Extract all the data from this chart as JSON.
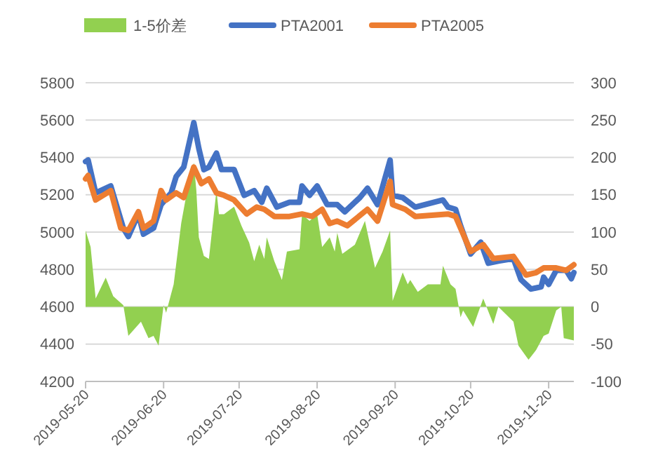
{
  "chart_data": {
    "type": "line",
    "xlim": [
      "2019-05-20",
      "2019-11-30"
    ],
    "xticks": [
      {
        "value": "2019-05-20",
        "label": "2019-05-20"
      },
      {
        "value": "2019-06-20",
        "label": "2019-06-20"
      },
      {
        "value": "2019-07-20",
        "label": "2019-07-20"
      },
      {
        "value": "2019-08-20",
        "label": "2019-08-20"
      },
      {
        "value": "2019-09-20",
        "label": "2019-09-20"
      },
      {
        "value": "2019-10-20",
        "label": "2019-10-20"
      },
      {
        "value": "2019-11-20",
        "label": "2019-11-20"
      }
    ],
    "ylim": [
      4200,
      5800
    ],
    "yticks": [
      4200,
      4400,
      4600,
      4800,
      5000,
      5200,
      5400,
      5600,
      5800
    ],
    "y2lim": [
      -100,
      300
    ],
    "y2ticks": [
      -100,
      -50,
      0,
      50,
      100,
      150,
      200,
      250,
      300
    ],
    "grid": "y",
    "legend": "top",
    "series": [
      {
        "name": "1-5价差",
        "type": "area",
        "axis": "y2",
        "color": "#92d050",
        "x": [
          "2019-05-20",
          "2019-05-22",
          "2019-05-24",
          "2019-05-28",
          "2019-05-31",
          "2019-06-04",
          "2019-06-06",
          "2019-06-11",
          "2019-06-14",
          "2019-06-16",
          "2019-06-18",
          "2019-06-20",
          "2019-06-21",
          "2019-06-24",
          "2019-06-27",
          "2019-06-29",
          "2019-07-02",
          "2019-07-03",
          "2019-07-04",
          "2019-07-06",
          "2019-07-08",
          "2019-07-11",
          "2019-07-12",
          "2019-07-14",
          "2019-07-18",
          "2019-07-21",
          "2019-07-24",
          "2019-07-26",
          "2019-07-28",
          "2019-07-30",
          "2019-07-31",
          "2019-08-03",
          "2019-08-06",
          "2019-08-08",
          "2019-08-13",
          "2019-08-14",
          "2019-08-17",
          "2019-08-20",
          "2019-08-22",
          "2019-08-25",
          "2019-08-27",
          "2019-08-28",
          "2019-08-30",
          "2019-09-04",
          "2019-09-08",
          "2019-09-12",
          "2019-09-15",
          "2019-09-18",
          "2019-09-19",
          "2019-09-23",
          "2019-09-25",
          "2019-09-26",
          "2019-09-29",
          "2019-10-03",
          "2019-10-08",
          "2019-10-09",
          "2019-10-12",
          "2019-10-14",
          "2019-10-16",
          "2019-10-17",
          "2019-10-21",
          "2019-10-25",
          "2019-10-29",
          "2019-10-31",
          "2019-11-06",
          "2019-11-08",
          "2019-11-12",
          "2019-11-15",
          "2019-11-18",
          "2019-11-20",
          "2019-11-23",
          "2019-11-25",
          "2019-11-26",
          "2019-11-30"
        ],
        "values": [
          102,
          80,
          11,
          39,
          14,
          2,
          -39,
          -20,
          -42,
          -39,
          -52,
          2,
          -8,
          30,
          112,
          149,
          193,
          156,
          93,
          68,
          64,
          156,
          124,
          124,
          134,
          108,
          86,
          61,
          83,
          64,
          93,
          61,
          36,
          74,
          77,
          124,
          115,
          124,
          80,
          93,
          74,
          99,
          71,
          83,
          115,
          52,
          74,
          102,
          8,
          46,
          30,
          36,
          20,
          30,
          30,
          55,
          30,
          24,
          -14,
          -5,
          -27,
          11,
          -23,
          0,
          -20,
          -52,
          -71,
          -58,
          -39,
          -36,
          -5,
          0,
          -42,
          -45
        ]
      },
      {
        "name": "PTA2001",
        "color": "#4472c4",
        "x": [
          "2019-05-20",
          "2019-05-21",
          "2019-05-24",
          "2019-05-30",
          "2019-06-04",
          "2019-06-06",
          "2019-06-10",
          "2019-06-12",
          "2019-06-16",
          "2019-06-19",
          "2019-06-23",
          "2019-06-25",
          "2019-06-28",
          "2019-07-02",
          "2019-07-04",
          "2019-07-06",
          "2019-07-08",
          "2019-07-11",
          "2019-07-13",
          "2019-07-18",
          "2019-07-22",
          "2019-07-26",
          "2019-07-29",
          "2019-07-31",
          "2019-08-04",
          "2019-08-09",
          "2019-08-13",
          "2019-08-14",
          "2019-08-17",
          "2019-08-20",
          "2019-08-24",
          "2019-08-28",
          "2019-08-31",
          "2019-09-06",
          "2019-09-09",
          "2019-09-13",
          "2019-09-18",
          "2019-09-19",
          "2019-09-23",
          "2019-09-28",
          "2019-10-09",
          "2019-10-11",
          "2019-10-14",
          "2019-10-16",
          "2019-10-20",
          "2019-10-24",
          "2019-10-27",
          "2019-10-31",
          "2019-11-06",
          "2019-11-09",
          "2019-11-13",
          "2019-11-17",
          "2019-11-18",
          "2019-11-20",
          "2019-11-23",
          "2019-11-27",
          "2019-11-29",
          "2019-11-30"
        ],
        "values": [
          5378,
          5386,
          5210,
          5247,
          5021,
          4976,
          5097,
          4989,
          5021,
          5147,
          5210,
          5298,
          5348,
          5586,
          5448,
          5335,
          5348,
          5423,
          5335,
          5335,
          5197,
          5222,
          5160,
          5235,
          5134,
          5160,
          5160,
          5247,
          5197,
          5247,
          5147,
          5147,
          5109,
          5185,
          5235,
          5147,
          5386,
          5197,
          5185,
          5134,
          5172,
          5134,
          5122,
          5034,
          4883,
          4946,
          4833,
          4845,
          4858,
          4745,
          4695,
          4707,
          4758,
          4720,
          4795,
          4795,
          4750,
          4783
        ]
      },
      {
        "name": "PTA2005",
        "color": "#ed7d31",
        "x": [
          "2019-05-20",
          "2019-05-21",
          "2019-05-24",
          "2019-05-30",
          "2019-06-03",
          "2019-06-06",
          "2019-06-10",
          "2019-06-12",
          "2019-06-16",
          "2019-06-19",
          "2019-06-21",
          "2019-06-25",
          "2019-06-28",
          "2019-07-02",
          "2019-07-05",
          "2019-07-08",
          "2019-07-11",
          "2019-07-14",
          "2019-07-18",
          "2019-07-23",
          "2019-07-27",
          "2019-07-30",
          "2019-08-03",
          "2019-08-09",
          "2019-08-14",
          "2019-08-18",
          "2019-08-22",
          "2019-08-25",
          "2019-08-28",
          "2019-09-01",
          "2019-09-09",
          "2019-09-13",
          "2019-09-18",
          "2019-09-19",
          "2019-09-24",
          "2019-09-28",
          "2019-10-11",
          "2019-10-14",
          "2019-10-20",
          "2019-10-25",
          "2019-10-29",
          "2019-11-06",
          "2019-11-11",
          "2019-11-15",
          "2019-11-18",
          "2019-11-23",
          "2019-11-27",
          "2019-11-30"
        ],
        "values": [
          5285,
          5303,
          5172,
          5222,
          5021,
          5009,
          5109,
          5021,
          5059,
          5222,
          5172,
          5210,
          5185,
          5348,
          5260,
          5285,
          5210,
          5197,
          5172,
          5097,
          5134,
          5122,
          5084,
          5084,
          5097,
          5084,
          5122,
          5046,
          5059,
          5034,
          5122,
          5059,
          5272,
          5147,
          5122,
          5084,
          5097,
          5084,
          4896,
          4933,
          4858,
          4870,
          4770,
          4783,
          4808,
          4808,
          4795,
          4825
        ]
      }
    ]
  }
}
